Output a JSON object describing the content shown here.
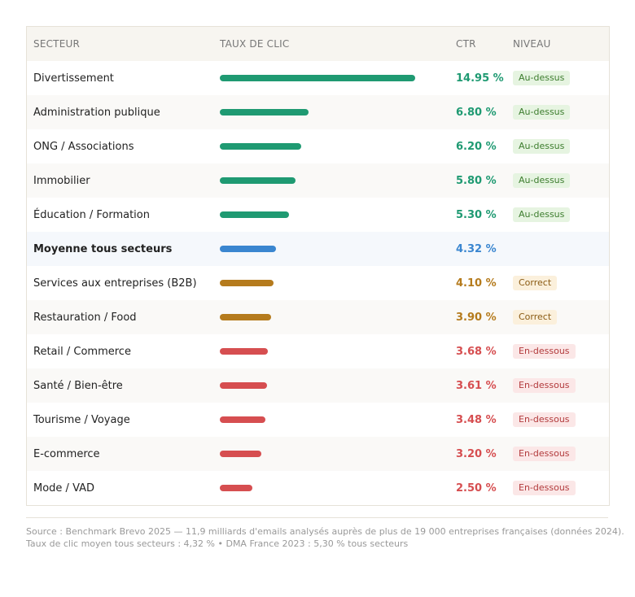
{
  "headers": {
    "sector": "SECTEUR",
    "rate": "TAUX DE CLIC",
    "ctr": "CTR",
    "level": "NIVEAU"
  },
  "colors": {
    "above": "#1f9a72",
    "avg": "#3a86d0",
    "ok": "#b57b1d",
    "below": "#d64e50"
  },
  "chart_data": {
    "type": "bar",
    "orientation": "horizontal",
    "categories": [
      "Divertissement",
      "Administration publique",
      "ONG / Associations",
      "Immobilier",
      "Éducation / Formation",
      "Moyenne tous secteurs",
      "Services aux entreprises (B2B)",
      "Restauration / Food",
      "Retail / Commerce",
      "Santé / Bien-être",
      "Tourisme / Voyage",
      "E-commerce",
      "Mode / VAD"
    ],
    "values": [
      14.95,
      6.8,
      6.2,
      5.8,
      5.3,
      4.32,
      4.1,
      3.9,
      3.68,
      3.61,
      3.48,
      3.2,
      2.5
    ],
    "xlim": [
      0,
      14.95
    ],
    "rows": [
      {
        "name": "Divertissement",
        "value": 14.95,
        "label": "14.95 %",
        "level": "Au-dessus",
        "tier": "above"
      },
      {
        "name": "Administration publique",
        "value": 6.8,
        "label": "6.80 %",
        "level": "Au-dessus",
        "tier": "above"
      },
      {
        "name": "ONG / Associations",
        "value": 6.2,
        "label": "6.20 %",
        "level": "Au-dessus",
        "tier": "above"
      },
      {
        "name": "Immobilier",
        "value": 5.8,
        "label": "5.80 %",
        "level": "Au-dessus",
        "tier": "above"
      },
      {
        "name": "Éducation / Formation",
        "value": 5.3,
        "label": "5.30 %",
        "level": "Au-dessus",
        "tier": "above"
      },
      {
        "name": "Moyenne tous secteurs",
        "value": 4.32,
        "label": "4.32 %",
        "level": "",
        "tier": "avg"
      },
      {
        "name": "Services aux entreprises (B2B)",
        "value": 4.1,
        "label": "4.10 %",
        "level": "Correct",
        "tier": "ok"
      },
      {
        "name": "Restauration / Food",
        "value": 3.9,
        "label": "3.90 %",
        "level": "Correct",
        "tier": "ok"
      },
      {
        "name": "Retail / Commerce",
        "value": 3.68,
        "label": "3.68 %",
        "level": "En-dessous",
        "tier": "below"
      },
      {
        "name": "Santé / Bien-être",
        "value": 3.61,
        "label": "3.61 %",
        "level": "En-dessous",
        "tier": "below"
      },
      {
        "name": "Tourisme / Voyage",
        "value": 3.48,
        "label": "3.48 %",
        "level": "En-dessous",
        "tier": "below"
      },
      {
        "name": "E-commerce",
        "value": 3.2,
        "label": "3.20 %",
        "level": "En-dessous",
        "tier": "below"
      },
      {
        "name": "Mode / VAD",
        "value": 2.5,
        "label": "2.50 %",
        "level": "En-dessous",
        "tier": "below"
      }
    ]
  },
  "footer": {
    "line1": "Source : Benchmark Brevo 2025 — 11,9 milliards d'emails analysés auprès de plus de 19 000 entreprises françaises (données 2024).",
    "line2": "Taux de clic moyen tous secteurs : 4,32 %  •  DMA France 2023 : 5,30 % tous secteurs"
  }
}
